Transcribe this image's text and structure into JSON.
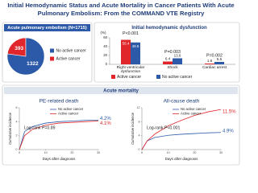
{
  "title": "Initial Hemodynamic Status and Acute Mortality in Cancer Patients With Acute Pulmonary Embolism: From the COMMAND VTE Registry",
  "section_title": "Acute mortality",
  "chart_data": [
    {
      "type": "pie",
      "title": "Acute pulmonary embolism (N=1715)",
      "categories": [
        "Active cancer",
        "No active cancer"
      ],
      "values": [
        393,
        1322
      ],
      "colors": [
        "#e0262b",
        "#2c5aa8"
      ]
    },
    {
      "type": "bar",
      "title": "Initial hemodynamic dysfunction",
      "y_label": "(%)",
      "categories": [
        "Right ventricular dysfunction",
        "Shock",
        "Cardiac arrest"
      ],
      "series": [
        {
          "name": "Active cancer",
          "color": "#e0262b",
          "values": [
            55.4,
            6.4,
            1.8
          ]
        },
        {
          "name": "No active cancer",
          "color": "#2c5aa8",
          "values": [
            49.5,
            13.6,
            5.5
          ]
        }
      ],
      "p_values": [
        "P<0.001",
        "P=0.003",
        "P=0.002"
      ],
      "ylim": [
        0,
        60
      ],
      "yticks": [
        0,
        20,
        40,
        60
      ]
    },
    {
      "type": "line",
      "title": "PE-related death",
      "x_label": "Days after diagnosis",
      "y_label": "Cumulative incidence",
      "annotation": "Log-rank P=0.89",
      "x": [
        0,
        2,
        5,
        10,
        15,
        20,
        25,
        30
      ],
      "series": [
        {
          "name": "No active cancer",
          "color": "#2c5aa8",
          "values": [
            0,
            2.6,
            3.3,
            3.8,
            4.0,
            4.1,
            4.2,
            4.2
          ],
          "end_label": "4.2%"
        },
        {
          "name": "Active cancer",
          "color": "#e0262b",
          "values": [
            0,
            2.0,
            2.9,
            3.5,
            3.8,
            3.9,
            4.0,
            4.1
          ],
          "end_label": "4.1%"
        }
      ],
      "xlim": [
        0,
        30
      ],
      "xticks": [
        0,
        10,
        20,
        30
      ],
      "ylim": [
        0,
        6
      ],
      "yticks": [
        0,
        2,
        4,
        6
      ]
    },
    {
      "type": "line",
      "title": "All-cause death",
      "x_label": "Days after diagnosis",
      "y_label": "Cumulative incidence",
      "annotation": "Log-rank P<0.001",
      "x": [
        0,
        2,
        5,
        10,
        15,
        20,
        25,
        30
      ],
      "series": [
        {
          "name": "No active cancer",
          "color": "#2c5aa8",
          "values": [
            0,
            2.5,
            3.5,
            4.1,
            4.4,
            4.6,
            4.8,
            4.9
          ],
          "end_label": "4.9%"
        },
        {
          "name": "Active cancer",
          "color": "#e0262b",
          "values": [
            0,
            2.5,
            4.5,
            6.8,
            8.4,
            9.8,
            10.8,
            11.5
          ],
          "end_label": "11.5%"
        }
      ],
      "xlim": [
        0,
        30
      ],
      "xticks": [
        0,
        10,
        20,
        30
      ],
      "ylim": [
        0,
        12
      ],
      "yticks": [
        0,
        4,
        8,
        12
      ]
    }
  ]
}
